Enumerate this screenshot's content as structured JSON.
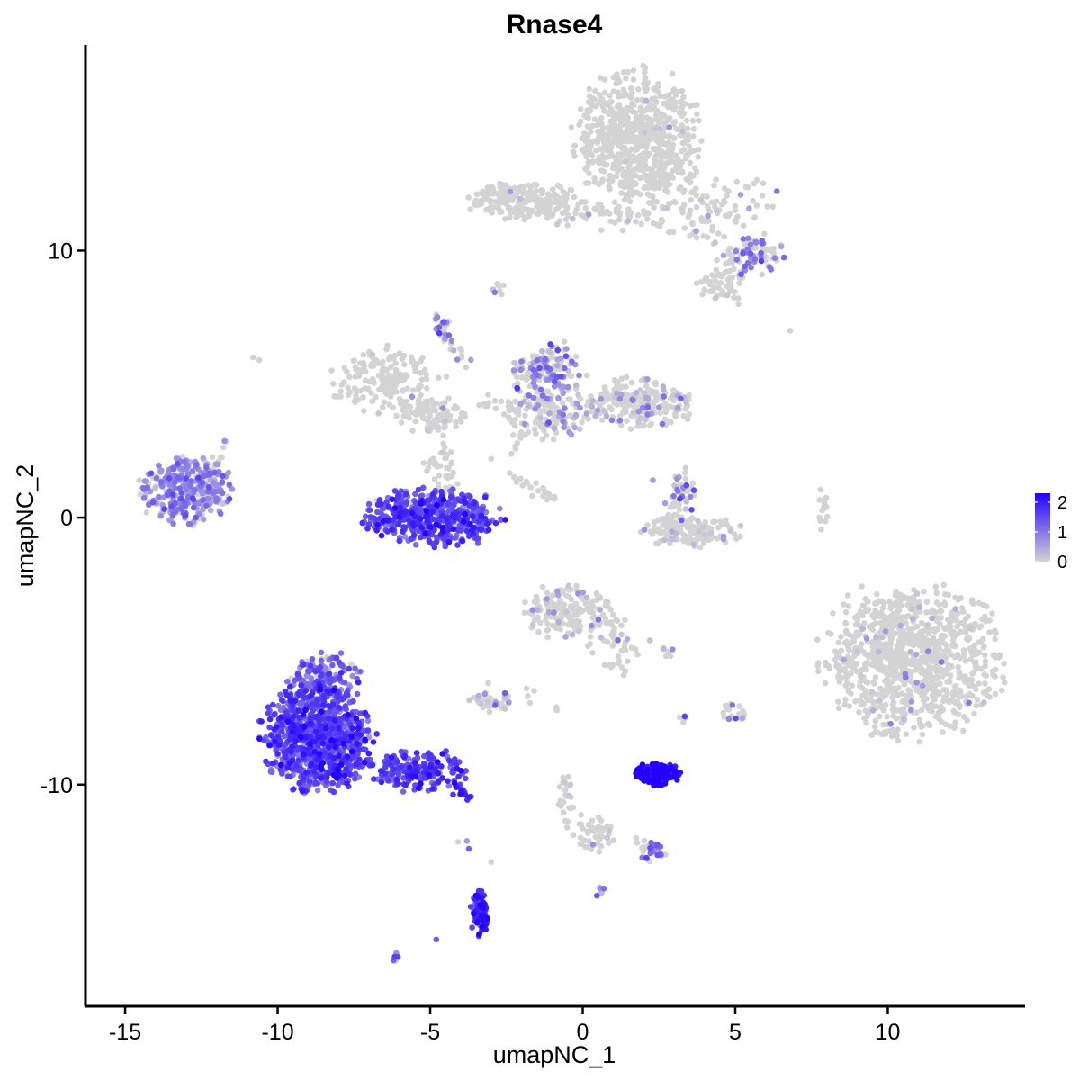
{
  "chart_data": {
    "type": "scatter",
    "title": "Rnase4",
    "xlabel": "umapNC_1",
    "ylabel": "umapNC_2",
    "xlim": [
      -16.3,
      14.5
    ],
    "ylim": [
      -18.3,
      17.7
    ],
    "xticks": [
      -15,
      -10,
      -5,
      0,
      5,
      10
    ],
    "xtick_labels": [
      "-15",
      "-10",
      "-5",
      "0",
      "5",
      "10"
    ],
    "yticks": [
      -10,
      0,
      10
    ],
    "ytick_labels": [
      "-10",
      "0",
      "10"
    ],
    "grid": false,
    "color_scale": {
      "low": "#d3d3d3",
      "high": "#2200ff",
      "min": 0,
      "max": 2.3,
      "ticks": [
        0,
        1,
        2
      ],
      "tick_labels": [
        "0",
        "1",
        "2"
      ],
      "legend_position": "right"
    },
    "clusters": [
      {
        "center": [
          1.8,
          14.2
        ],
        "spread": [
          1.0,
          1.3
        ],
        "n": 700,
        "expr_mean": 0.05,
        "expr_frac": 0.02
      },
      {
        "center": [
          -1.9,
          11.9
        ],
        "spread": [
          1.0,
          0.35
        ],
        "n": 220,
        "expr_mean": 0.1,
        "expr_frac": 0.03
      },
      {
        "center": [
          0.8,
          11.3
        ],
        "spread": [
          1.4,
          0.3
        ],
        "n": 40,
        "expr_mean": 0.1,
        "expr_frac": 0.05
      },
      {
        "center": [
          4.4,
          11.8
        ],
        "spread": [
          1.0,
          0.5
        ],
        "n": 80,
        "expr_mean": 0.2,
        "expr_frac": 0.1
      },
      {
        "center": [
          5.6,
          9.8
        ],
        "spread": [
          0.5,
          0.35
        ],
        "n": 80,
        "expr_mean": 0.9,
        "expr_frac": 0.5
      },
      {
        "center": [
          4.6,
          8.9
        ],
        "spread": [
          0.4,
          0.4
        ],
        "n": 60,
        "expr_mean": 0.1,
        "expr_frac": 0.05
      },
      {
        "center": [
          -6.5,
          5.2
        ],
        "spread": [
          0.9,
          0.6
        ],
        "n": 170,
        "expr_mean": 0.1,
        "expr_frac": 0.04
      },
      {
        "center": [
          -4.8,
          3.8
        ],
        "spread": [
          0.6,
          0.35
        ],
        "n": 110,
        "expr_mean": 0.1,
        "expr_frac": 0.03
      },
      {
        "center": [
          -4.6,
          1.8
        ],
        "spread": [
          0.3,
          0.5
        ],
        "n": 40,
        "expr_mean": 0.1,
        "expr_frac": 0.03
      },
      {
        "center": [
          -1.3,
          5.5
        ],
        "spread": [
          0.5,
          0.5
        ],
        "n": 130,
        "expr_mean": 0.9,
        "expr_frac": 0.45
      },
      {
        "center": [
          -1.0,
          4.0
        ],
        "spread": [
          0.8,
          0.5
        ],
        "n": 150,
        "expr_mean": 0.5,
        "expr_frac": 0.25
      },
      {
        "center": [
          1.8,
          4.3
        ],
        "spread": [
          1.0,
          0.45
        ],
        "n": 210,
        "expr_mean": 0.4,
        "expr_frac": 0.2
      },
      {
        "center": [
          -13.0,
          1.0
        ],
        "spread": [
          0.75,
          0.6
        ],
        "n": 340,
        "expr_mean": 0.8,
        "expr_frac": 0.75
      },
      {
        "center": [
          -4.9,
          0.0
        ],
        "spread": [
          1.1,
          0.55
        ],
        "n": 500,
        "expr_mean": 1.5,
        "expr_frac": 0.95
      },
      {
        "center": [
          3.5,
          -0.5
        ],
        "spread": [
          0.8,
          0.3
        ],
        "n": 160,
        "expr_mean": 0.2,
        "expr_frac": 0.08
      },
      {
        "center": [
          3.2,
          0.9
        ],
        "spread": [
          0.25,
          0.5
        ],
        "n": 40,
        "expr_mean": 0.9,
        "expr_frac": 0.4
      },
      {
        "center": [
          7.9,
          0.3
        ],
        "spread": [
          0.12,
          0.4
        ],
        "n": 14,
        "expr_mean": 0.1,
        "expr_frac": 0.0
      },
      {
        "center": [
          -0.5,
          -3.5
        ],
        "spread": [
          0.7,
          0.5
        ],
        "n": 170,
        "expr_mean": 0.5,
        "expr_frac": 0.12
      },
      {
        "center": [
          1.0,
          -4.8
        ],
        "spread": [
          0.45,
          0.55
        ],
        "n": 40,
        "expr_mean": 0.5,
        "expr_frac": 0.15
      },
      {
        "center": [
          10.8,
          -5.3
        ],
        "spread": [
          1.45,
          1.45
        ],
        "n": 1000,
        "expr_mean": 0.4,
        "expr_frac": 0.03
      },
      {
        "center": [
          -8.7,
          -8.2
        ],
        "spread": [
          0.9,
          1.0
        ],
        "n": 850,
        "expr_mean": 1.5,
        "expr_frac": 0.97
      },
      {
        "center": [
          -8.5,
          -6.0
        ],
        "spread": [
          0.6,
          0.5
        ],
        "n": 150,
        "expr_mean": 1.2,
        "expr_frac": 0.85
      },
      {
        "center": [
          -5.3,
          -9.5
        ],
        "spread": [
          0.8,
          0.4
        ],
        "n": 190,
        "expr_mean": 1.6,
        "expr_frac": 0.95
      },
      {
        "center": [
          -3.4,
          -14.8
        ],
        "spread": [
          0.15,
          0.4
        ],
        "n": 80,
        "expr_mean": 1.8,
        "expr_frac": 0.97
      },
      {
        "center": [
          -3.0,
          -6.9
        ],
        "spread": [
          0.35,
          0.2
        ],
        "n": 40,
        "expr_mean": 0.4,
        "expr_frac": 0.2
      },
      {
        "center": [
          2.4,
          -9.6
        ],
        "spread": [
          0.4,
          0.2
        ],
        "n": 150,
        "expr_mean": 2.2,
        "expr_frac": 1.0
      },
      {
        "center": [
          0.4,
          -11.8
        ],
        "spread": [
          0.35,
          0.35
        ],
        "n": 40,
        "expr_mean": 0.1,
        "expr_frac": 0.05
      },
      {
        "center": [
          -0.5,
          -10.5
        ],
        "spread": [
          0.15,
          0.6
        ],
        "n": 25,
        "expr_mean": 0.1,
        "expr_frac": 0.05
      },
      {
        "center": [
          2.3,
          -12.5
        ],
        "spread": [
          0.2,
          0.2
        ],
        "n": 30,
        "expr_mean": 1.0,
        "expr_frac": 0.6
      },
      {
        "center": [
          5.0,
          -7.3
        ],
        "spread": [
          0.2,
          0.2
        ],
        "n": 18,
        "expr_mean": 0.8,
        "expr_frac": 0.5
      },
      {
        "center": [
          3.3,
          -7.6
        ],
        "spread": [
          0.1,
          0.1
        ],
        "n": 5,
        "expr_mean": 1.0,
        "expr_frac": 0.6
      },
      {
        "center": [
          0.6,
          -14.0
        ],
        "spread": [
          0.1,
          0.1
        ],
        "n": 6,
        "expr_mean": 0.9,
        "expr_frac": 0.6
      },
      {
        "center": [
          -6.1,
          -16.5
        ],
        "spread": [
          0.1,
          0.1
        ],
        "n": 5,
        "expr_mean": 1.2,
        "expr_frac": 0.8
      },
      {
        "center": [
          2.8,
          -5.0
        ],
        "spread": [
          0.15,
          0.1
        ],
        "n": 6,
        "expr_mean": 0.5,
        "expr_frac": 0.4
      },
      {
        "center": [
          -2.8,
          8.6
        ],
        "spread": [
          0.1,
          0.15
        ],
        "n": 8,
        "expr_mean": 0.8,
        "expr_frac": 0.5
      },
      {
        "center": [
          -4.6,
          7.2
        ],
        "spread": [
          0.15,
          0.3
        ],
        "n": 14,
        "expr_mean": 0.9,
        "expr_frac": 0.5
      }
    ],
    "trails": [
      {
        "from": [
          -4.6,
          7.5
        ],
        "to": [
          -3.8,
          5.5
        ],
        "n": 18,
        "expr_mean": 0.5,
        "expr_frac": 0.3
      },
      {
        "from": [
          -3.4,
          4.2
        ],
        "to": [
          -2.1,
          4.2
        ],
        "n": 10,
        "expr_mean": 0.1,
        "expr_frac": 0.0
      },
      {
        "from": [
          -2.4,
          2.5
        ],
        "to": [
          -2.0,
          3.5
        ],
        "n": 10,
        "expr_mean": 0.1,
        "expr_frac": 0.0
      },
      {
        "from": [
          -2.4,
          1.6
        ],
        "to": [
          -0.9,
          0.7
        ],
        "n": 22,
        "expr_mean": 0.1,
        "expr_frac": 0.0
      },
      {
        "from": [
          -12.3,
          1.5
        ],
        "to": [
          -11.6,
          2.8
        ],
        "n": 12,
        "expr_mean": 0.5,
        "expr_frac": 0.3
      },
      {
        "from": [
          0.2,
          11.8
        ],
        "to": [
          3.8,
          10.5
        ],
        "n": 25,
        "expr_mean": 0.1,
        "expr_frac": 0.05
      },
      {
        "from": [
          3.6,
          11.0
        ],
        "to": [
          5.0,
          10.0
        ],
        "n": 12,
        "expr_mean": 0.2,
        "expr_frac": 0.1
      },
      {
        "from": [
          -4.2,
          -10.1
        ],
        "to": [
          -3.7,
          -10.5
        ],
        "n": 12,
        "expr_mean": 1.8,
        "expr_frac": 1.0
      },
      {
        "from": [
          -3.9,
          -11.7
        ],
        "to": [
          -3.9,
          -12.5
        ],
        "n": 3,
        "expr_mean": 1.2,
        "expr_frac": 0.8
      },
      {
        "from": [
          -1.6,
          -6.0
        ],
        "to": [
          -1.8,
          -6.8
        ],
        "n": 4,
        "expr_mean": 0.1,
        "expr_frac": 0.0
      },
      {
        "from": [
          -0.9,
          -7.1
        ],
        "to": [
          -0.7,
          -7.3
        ],
        "n": 3,
        "expr_mean": 0.1,
        "expr_frac": 0.0
      },
      {
        "from": [
          0.7,
          -11.7
        ],
        "to": [
          2.2,
          -12.4
        ],
        "n": 12,
        "expr_mean": 0.3,
        "expr_frac": 0.15
      },
      {
        "from": [
          0.8,
          -3.5
        ],
        "to": [
          1.3,
          -5.5
        ],
        "n": 10,
        "expr_mean": 0.3,
        "expr_frac": 0.2
      },
      {
        "from": [
          -0.5,
          6.6
        ],
        "to": [
          -0.2,
          5.0
        ],
        "n": 10,
        "expr_mean": 0.8,
        "expr_frac": 0.5
      }
    ],
    "isolated_points": [
      {
        "x": -10.8,
        "y": 6.0,
        "expr": 0
      },
      {
        "x": -10.6,
        "y": 5.9,
        "expr": 0
      },
      {
        "x": 6.8,
        "y": 7.0,
        "expr": 0
      },
      {
        "x": 5.1,
        "y": 8.0,
        "expr": 0
      },
      {
        "x": -3.1,
        "y": -6.2,
        "expr": 0
      },
      {
        "x": -3.0,
        "y": -12.9,
        "expr": 0
      },
      {
        "x": -4.8,
        "y": -15.8,
        "expr": 1.3
      },
      {
        "x": -2.4,
        "y": 3.7,
        "expr": 0
      },
      {
        "x": -3.1,
        "y": 4.6,
        "expr": 0
      },
      {
        "x": -3.0,
        "y": 2.2,
        "expr": 0
      },
      {
        "x": 2.3,
        "y": 1.4,
        "expr": 0.6
      },
      {
        "x": 2.2,
        "y": -4.6,
        "expr": 0.2
      }
    ]
  }
}
